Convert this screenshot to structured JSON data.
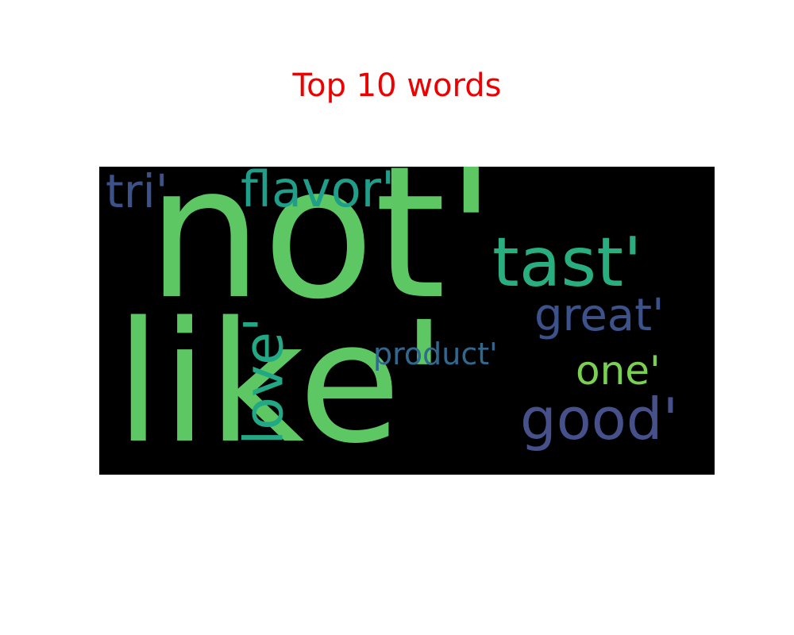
{
  "title": {
    "text": "Top 10 words",
    "color": "#ee0000"
  },
  "wordcloud": {
    "background": "#000000",
    "words": [
      {
        "text": "not'",
        "color": "#5dc863"
      },
      {
        "text": "like'",
        "color": "#5dc863"
      },
      {
        "text": "tast'",
        "color": "#29af7f"
      },
      {
        "text": "love'",
        "color": "#22a884"
      },
      {
        "text": "great'",
        "color": "#3b528b"
      },
      {
        "text": "good'",
        "color": "#46508b"
      },
      {
        "text": "one'",
        "color": "#7ad151"
      },
      {
        "text": "flavor'",
        "color": "#1f9e89"
      },
      {
        "text": "tri'",
        "color": "#3b528b"
      },
      {
        "text": "product'",
        "color": "#31688e"
      }
    ]
  }
}
